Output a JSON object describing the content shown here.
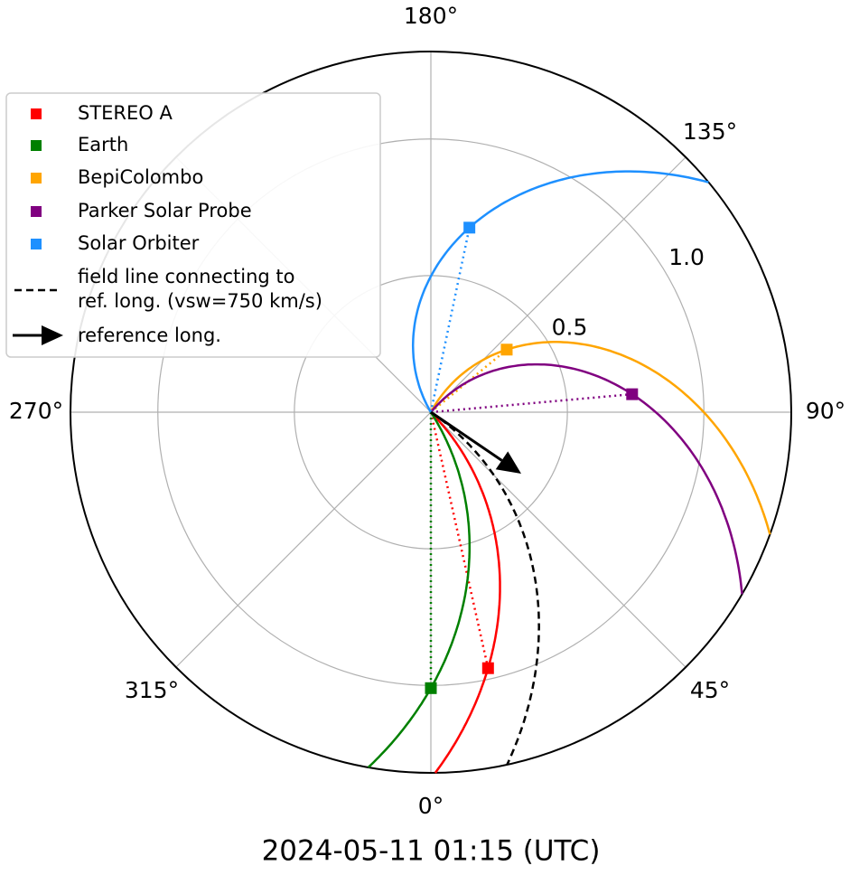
{
  "chart_data": {
    "type": "polar",
    "title": "2024-05-11 01:15 (UTC)",
    "rlim": [
      0,
      1.32
    ],
    "rticks": [
      0.5,
      {
        "value": 1,
        "label": "1.0"
      }
    ],
    "thetaticks": [
      {
        "value": 0,
        "label": "0°"
      },
      {
        "value": 45,
        "label": "45°"
      },
      {
        "value": 90,
        "label": "90°"
      },
      {
        "value": 135,
        "label": "135°"
      },
      {
        "value": 180,
        "label": "180°"
      },
      {
        "value": 225,
        "label": null
      },
      {
        "value": 270,
        "label": "270°"
      },
      {
        "value": 315,
        "label": "315°"
      }
    ],
    "grid": true,
    "legend": "upper left",
    "series": [
      {
        "name": "STEREO A",
        "color": "#ff0000",
        "lon": 12.6,
        "r": 0.96,
        "line_end_lon": 0.7
      },
      {
        "name": "Earth",
        "color": "#008000",
        "lon": 0,
        "r": 1.01,
        "line_end_lon": 350
      },
      {
        "name": "BepiColombo",
        "color": "#ffa500",
        "lon": 129.5,
        "r": 0.36,
        "line_end_lon": 70.2
      },
      {
        "name": "Parker Solar Probe",
        "color": "#800080",
        "lon": 95.1,
        "r": 0.74,
        "line_end_lon": 59.7
      },
      {
        "name": "Solar Orbiter",
        "color": "#1e90ff",
        "lon": 168.2,
        "r": 0.69,
        "line_end_lon": 129.6
      }
    ],
    "reference": {
      "line_label": [
        "field line connecting to",
        "ref. long. (vsw=750 km/s)"
      ],
      "arrow_label": "reference long.",
      "lon": 55.8,
      "line_end_lon": 12.2,
      "color": "#000000"
    }
  }
}
